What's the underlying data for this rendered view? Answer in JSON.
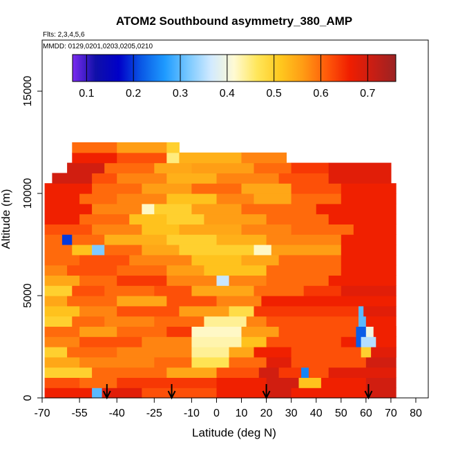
{
  "chart_data": {
    "type": "heatmap",
    "title": "ATOM2 Southbound asymmetry_380_AMP",
    "notes": [
      "Flts: 2,3,4,5,6",
      "MMDD: 0129,0201,0203,0205,0210"
    ],
    "xlabel": "Latitude (deg N)",
    "ylabel": "Altitude (m)",
    "xlim": [
      -70,
      85
    ],
    "ylim": [
      0,
      17500
    ],
    "x_ticks": [
      -70,
      -55,
      -40,
      -25,
      -10,
      0,
      10,
      20,
      30,
      40,
      50,
      60,
      70,
      80
    ],
    "x_tick_labels": [
      "-70",
      "-55",
      "-40",
      "-25",
      "-10",
      "0",
      "10",
      "20",
      "30",
      "40",
      "50",
      "60",
      "70",
      "80"
    ],
    "y_ticks": [
      0,
      5000,
      10000,
      15000
    ],
    "y_tick_labels": [
      "0",
      "5000",
      "10000",
      "15000"
    ],
    "colorbar": {
      "range": [
        0.07,
        0.76
      ],
      "ticks": [
        0.1,
        0.2,
        0.3,
        0.4,
        0.5,
        0.6,
        0.7
      ],
      "tick_labels": [
        "0.1",
        "0.2",
        "0.3",
        "0.4",
        "0.5",
        "0.6",
        "0.7"
      ],
      "stops": [
        "#7b2cf0",
        "#1010a8",
        "#0000c8",
        "#0a5ae6",
        "#1e9bff",
        "#78c8ff",
        "#d2eaff",
        "#fffad2",
        "#ffe65a",
        "#ffc81e",
        "#ff9b14",
        "#ff5a0a",
        "#f01e00",
        "#c81e14",
        "#9b2323"
      ]
    },
    "flight_markers_lat": [
      -44,
      -18,
      20,
      61
    ],
    "region": {
      "lat_min": -69,
      "lat_max": 72,
      "alt_max": 12500
    },
    "layers": [
      {
        "alt": [
          0,
          500
        ],
        "cells": [
          [
            -69,
            -50,
            0.66
          ],
          [
            -50,
            -46,
            0.3
          ],
          [
            -46,
            -30,
            0.68
          ],
          [
            -30,
            0,
            0.62
          ],
          [
            0,
            20,
            0.66
          ],
          [
            20,
            30,
            0.7
          ],
          [
            30,
            60,
            0.66
          ],
          [
            60,
            72,
            0.7
          ]
        ]
      },
      {
        "alt": [
          500,
          1000
        ],
        "cells": [
          [
            -69,
            -55,
            0.62
          ],
          [
            -55,
            -40,
            0.6
          ],
          [
            -40,
            0,
            0.64
          ],
          [
            0,
            20,
            0.66
          ],
          [
            20,
            33,
            0.7
          ],
          [
            33,
            42,
            0.52
          ],
          [
            42,
            60,
            0.66
          ],
          [
            60,
            72,
            0.7
          ]
        ]
      },
      {
        "alt": [
          1000,
          1500
        ],
        "cells": [
          [
            -69,
            -50,
            0.5
          ],
          [
            -50,
            -20,
            0.6
          ],
          [
            -20,
            0,
            0.55
          ],
          [
            0,
            17,
            0.62
          ],
          [
            17,
            25,
            0.7
          ],
          [
            25,
            34,
            0.64
          ],
          [
            34,
            37,
            0.25
          ],
          [
            37,
            45,
            0.62
          ],
          [
            45,
            72,
            0.68
          ]
        ]
      },
      {
        "alt": [
          1500,
          2000
        ],
        "cells": [
          [
            -69,
            -55,
            0.55
          ],
          [
            -55,
            -25,
            0.58
          ],
          [
            -25,
            -10,
            0.6
          ],
          [
            -10,
            5,
            0.47
          ],
          [
            5,
            20,
            0.6
          ],
          [
            20,
            30,
            0.68
          ],
          [
            30,
            60,
            0.62
          ],
          [
            60,
            72,
            0.7
          ]
        ]
      },
      {
        "alt": [
          2000,
          2500
        ],
        "cells": [
          [
            -69,
            -60,
            0.5
          ],
          [
            -60,
            -40,
            0.6
          ],
          [
            -40,
            -10,
            0.58
          ],
          [
            -10,
            5,
            0.44
          ],
          [
            5,
            15,
            0.55
          ],
          [
            15,
            30,
            0.66
          ],
          [
            30,
            58,
            0.62
          ],
          [
            58,
            62,
            0.5
          ],
          [
            62,
            72,
            0.68
          ]
        ]
      },
      {
        "alt": [
          2500,
          3000
        ],
        "cells": [
          [
            -69,
            -55,
            0.58
          ],
          [
            -55,
            -30,
            0.62
          ],
          [
            -30,
            -10,
            0.58
          ],
          [
            -10,
            10,
            0.43
          ],
          [
            10,
            20,
            0.52
          ],
          [
            20,
            50,
            0.62
          ],
          [
            50,
            56,
            0.66
          ],
          [
            56,
            58,
            0.22
          ],
          [
            58,
            64,
            0.35
          ],
          [
            64,
            72,
            0.66
          ]
        ]
      },
      {
        "alt": [
          3000,
          3500
        ],
        "cells": [
          [
            -69,
            -55,
            0.6
          ],
          [
            -55,
            -40,
            0.56
          ],
          [
            -40,
            -20,
            0.6
          ],
          [
            -20,
            -10,
            0.64
          ],
          [
            -10,
            10,
            0.42
          ],
          [
            10,
            25,
            0.56
          ],
          [
            25,
            56,
            0.62
          ],
          [
            56,
            60,
            0.22
          ],
          [
            60,
            63,
            0.4
          ],
          [
            63,
            72,
            0.66
          ]
        ]
      },
      {
        "alt": [
          3500,
          4000
        ],
        "cells": [
          [
            -69,
            -58,
            0.5
          ],
          [
            -58,
            -45,
            0.6
          ],
          [
            -45,
            -25,
            0.58
          ],
          [
            -25,
            -5,
            0.6
          ],
          [
            -5,
            12,
            0.44
          ],
          [
            12,
            20,
            0.58
          ],
          [
            20,
            57,
            0.62
          ],
          [
            57,
            60,
            0.3
          ],
          [
            60,
            72,
            0.66
          ]
        ]
      },
      {
        "alt": [
          4000,
          4500
        ],
        "cells": [
          [
            -69,
            -55,
            0.52
          ],
          [
            -55,
            -40,
            0.58
          ],
          [
            -40,
            -15,
            0.62
          ],
          [
            -15,
            5,
            0.56
          ],
          [
            5,
            15,
            0.48
          ],
          [
            15,
            57,
            0.64
          ],
          [
            57,
            59,
            0.3
          ],
          [
            59,
            72,
            0.68
          ]
        ]
      },
      {
        "alt": [
          4500,
          5000
        ],
        "cells": [
          [
            -69,
            -60,
            0.55
          ],
          [
            -60,
            -40,
            0.6
          ],
          [
            -40,
            -20,
            0.55
          ],
          [
            -20,
            0,
            0.62
          ],
          [
            0,
            18,
            0.58
          ],
          [
            18,
            30,
            0.66
          ],
          [
            30,
            72,
            0.66
          ]
        ]
      },
      {
        "alt": [
          5000,
          5500
        ],
        "cells": [
          [
            -69,
            -58,
            0.5
          ],
          [
            -58,
            -45,
            0.62
          ],
          [
            -45,
            -25,
            0.6
          ],
          [
            -25,
            -10,
            0.62
          ],
          [
            -10,
            15,
            0.55
          ],
          [
            15,
            35,
            0.6
          ],
          [
            35,
            50,
            0.64
          ],
          [
            50,
            72,
            0.68
          ]
        ]
      },
      {
        "alt": [
          5500,
          6000
        ],
        "cells": [
          [
            -69,
            -55,
            0.55
          ],
          [
            -55,
            -40,
            0.6
          ],
          [
            -40,
            -20,
            0.64
          ],
          [
            -20,
            0,
            0.58
          ],
          [
            0,
            5,
            0.36
          ],
          [
            5,
            20,
            0.58
          ],
          [
            20,
            45,
            0.6
          ],
          [
            45,
            72,
            0.66
          ]
        ]
      },
      {
        "alt": [
          6000,
          6500
        ],
        "cells": [
          [
            -69,
            -60,
            0.58
          ],
          [
            -60,
            -40,
            0.62
          ],
          [
            -40,
            -20,
            0.6
          ],
          [
            -20,
            -5,
            0.56
          ],
          [
            -5,
            20,
            0.52
          ],
          [
            20,
            50,
            0.6
          ],
          [
            50,
            72,
            0.66
          ]
        ]
      },
      {
        "alt": [
          6500,
          7000
        ],
        "cells": [
          [
            -69,
            -55,
            0.6
          ],
          [
            -55,
            -35,
            0.62
          ],
          [
            -35,
            -10,
            0.58
          ],
          [
            -10,
            10,
            0.52
          ],
          [
            10,
            25,
            0.55
          ],
          [
            25,
            50,
            0.6
          ],
          [
            50,
            72,
            0.66
          ]
        ]
      },
      {
        "alt": [
          7000,
          7500
        ],
        "cells": [
          [
            -69,
            -58,
            0.6
          ],
          [
            -58,
            -50,
            0.52
          ],
          [
            -50,
            -45,
            0.32
          ],
          [
            -45,
            -30,
            0.6
          ],
          [
            -30,
            -15,
            0.55
          ],
          [
            -15,
            15,
            0.5
          ],
          [
            15,
            22,
            0.42
          ],
          [
            22,
            50,
            0.56
          ],
          [
            50,
            72,
            0.66
          ]
        ]
      },
      {
        "alt": [
          7500,
          8000
        ],
        "cells": [
          [
            -69,
            -62,
            0.6
          ],
          [
            -62,
            -58,
            0.2
          ],
          [
            -58,
            -45,
            0.6
          ],
          [
            -45,
            -20,
            0.54
          ],
          [
            -20,
            0,
            0.5
          ],
          [
            0,
            20,
            0.54
          ],
          [
            20,
            50,
            0.58
          ],
          [
            50,
            72,
            0.66
          ]
        ]
      },
      {
        "alt": [
          8000,
          8500
        ],
        "cells": [
          [
            -69,
            -50,
            0.62
          ],
          [
            -50,
            -30,
            0.58
          ],
          [
            -30,
            -15,
            0.52
          ],
          [
            -15,
            10,
            0.55
          ],
          [
            10,
            30,
            0.58
          ],
          [
            30,
            55,
            0.6
          ],
          [
            55,
            72,
            0.66
          ]
        ]
      },
      {
        "alt": [
          8500,
          9000
        ],
        "cells": [
          [
            -69,
            -55,
            0.66
          ],
          [
            -55,
            -35,
            0.6
          ],
          [
            -35,
            -20,
            0.52
          ],
          [
            -20,
            -5,
            0.5
          ],
          [
            -5,
            20,
            0.56
          ],
          [
            20,
            45,
            0.6
          ],
          [
            45,
            72,
            0.66
          ]
        ]
      },
      {
        "alt": [
          9000,
          9500
        ],
        "cells": [
          [
            -69,
            -50,
            0.66
          ],
          [
            -50,
            -30,
            0.58
          ],
          [
            -30,
            -25,
            0.42
          ],
          [
            -25,
            -10,
            0.5
          ],
          [
            -10,
            10,
            0.56
          ],
          [
            10,
            40,
            0.6
          ],
          [
            40,
            72,
            0.66
          ]
        ]
      },
      {
        "alt": [
          9500,
          10000
        ],
        "cells": [
          [
            -69,
            -55,
            0.66
          ],
          [
            -55,
            -40,
            0.6
          ],
          [
            -40,
            -20,
            0.58
          ],
          [
            -20,
            0,
            0.52
          ],
          [
            0,
            15,
            0.58
          ],
          [
            15,
            30,
            0.55
          ],
          [
            30,
            50,
            0.6
          ],
          [
            50,
            72,
            0.66
          ]
        ]
      },
      {
        "alt": [
          10000,
          10500
        ],
        "cells": [
          [
            -69,
            -50,
            0.66
          ],
          [
            -50,
            -30,
            0.6
          ],
          [
            -30,
            -10,
            0.56
          ],
          [
            -10,
            10,
            0.6
          ],
          [
            10,
            30,
            0.55
          ],
          [
            30,
            50,
            0.62
          ],
          [
            50,
            72,
            0.66
          ]
        ]
      },
      {
        "alt": [
          10500,
          11000
        ],
        "cells": [
          [
            -66,
            -50,
            0.7
          ],
          [
            -50,
            -40,
            0.62
          ],
          [
            -40,
            -20,
            0.58
          ],
          [
            -20,
            0,
            0.54
          ],
          [
            0,
            25,
            0.58
          ],
          [
            25,
            45,
            0.62
          ],
          [
            45,
            70,
            0.68
          ]
        ]
      },
      {
        "alt": [
          11000,
          11500
        ],
        "cells": [
          [
            -60,
            -45,
            0.7
          ],
          [
            -45,
            -25,
            0.6
          ],
          [
            -25,
            -10,
            0.55
          ],
          [
            -10,
            15,
            0.56
          ],
          [
            15,
            30,
            0.6
          ],
          [
            30,
            45,
            0.64
          ],
          [
            45,
            70,
            0.68
          ]
        ]
      },
      {
        "alt": [
          11500,
          12000
        ],
        "cells": [
          [
            -58,
            -40,
            0.66
          ],
          [
            -40,
            -20,
            0.62
          ],
          [
            -20,
            -15,
            0.45
          ],
          [
            -15,
            10,
            0.54
          ],
          [
            10,
            28,
            0.58
          ]
        ]
      },
      {
        "alt": [
          12000,
          12500
        ],
        "cells": [
          [
            -58,
            -40,
            0.6
          ],
          [
            -40,
            -20,
            0.56
          ],
          [
            -20,
            -15,
            0.5
          ]
        ]
      }
    ]
  }
}
